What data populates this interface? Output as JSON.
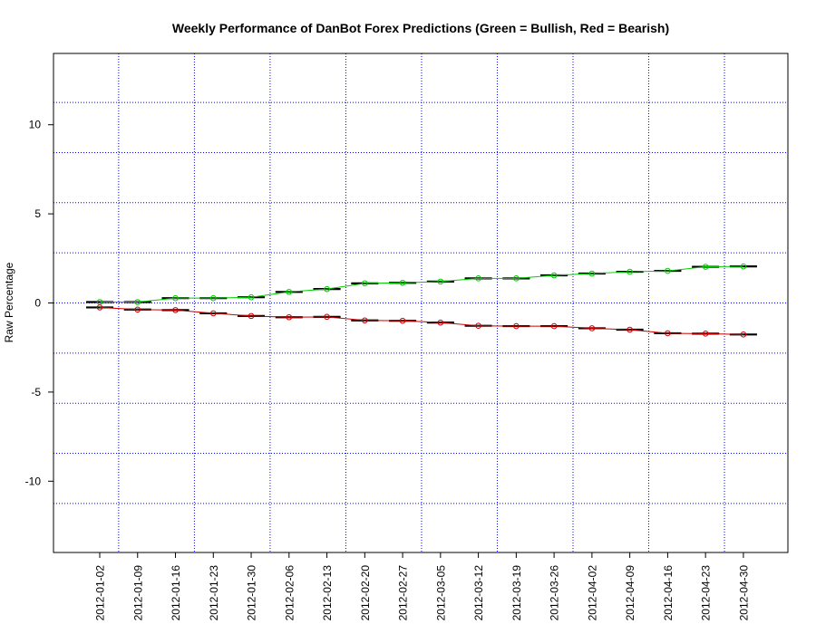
{
  "chart_data": {
    "type": "line",
    "title": "Weekly Performance of DanBot Forex Predictions (Green = Bullish, Red = Bearish)",
    "xlabel": "",
    "ylabel": "Raw Percentage",
    "x": [
      "2012-01-02",
      "2012-01-09",
      "2012-01-16",
      "2012-01-23",
      "2012-01-30",
      "2012-02-06",
      "2012-02-13",
      "2012-02-20",
      "2012-02-27",
      "2012-03-05",
      "2012-03-12",
      "2012-03-19",
      "2012-03-26",
      "2012-04-02",
      "2012-04-09",
      "2012-04-16",
      "2012-04-23",
      "2012-04-30"
    ],
    "series": [
      {
        "color": "#00cc00",
        "values": [
          0.05,
          0.05,
          0.27,
          0.27,
          0.32,
          0.62,
          0.78,
          1.1,
          1.13,
          1.2,
          1.38,
          1.38,
          1.55,
          1.65,
          1.75,
          1.8,
          2.03,
          2.05
        ]
      },
      {
        "color": "#cc0000",
        "values": [
          -0.25,
          -0.37,
          -0.4,
          -0.58,
          -0.73,
          -0.8,
          -0.78,
          -0.98,
          -1.0,
          -1.1,
          -1.28,
          -1.3,
          -1.3,
          -1.42,
          -1.5,
          -1.7,
          -1.72,
          -1.77
        ]
      }
    ],
    "ylim": [
      -14,
      14
    ],
    "yticks": [
      "-10",
      "-5",
      "0",
      "5",
      "10"
    ],
    "ytick_values": [
      -10,
      -5,
      0,
      5,
      10
    ],
    "grid": true,
    "grid_color": "#0000ff",
    "step_color": "#000000"
  }
}
